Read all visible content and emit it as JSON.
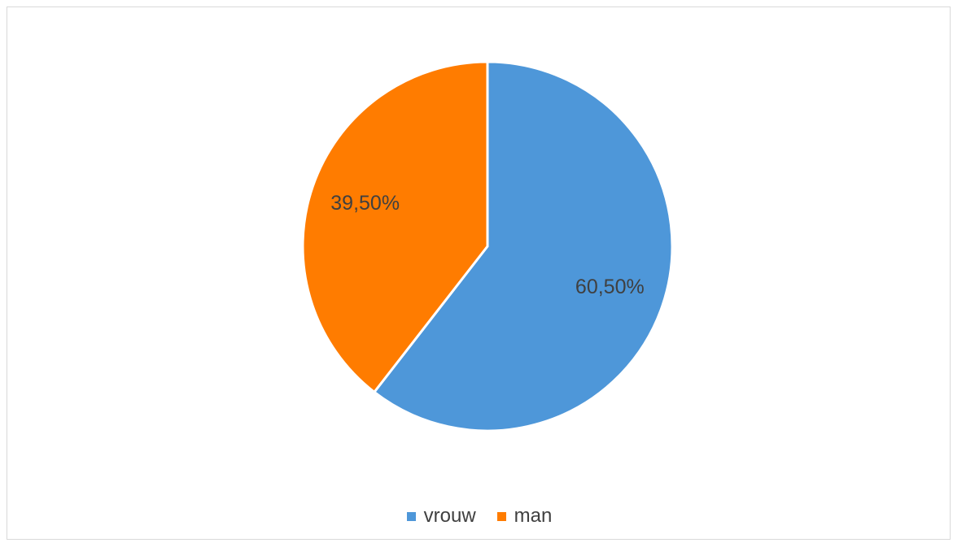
{
  "chart_data": {
    "type": "pie",
    "title": "",
    "categories": [
      "vrouw",
      "man"
    ],
    "values": [
      60.5,
      39.5
    ],
    "labels": [
      "60,50%",
      "39,50%"
    ],
    "colors": [
      "#4e97d9",
      "#ff7c00"
    ],
    "legend_position": "bottom",
    "start_angle": "top, clockwise"
  },
  "legend": {
    "items": [
      {
        "label": "vrouw",
        "color": "#4e97d9"
      },
      {
        "label": "man",
        "color": "#ff7c00"
      }
    ]
  }
}
